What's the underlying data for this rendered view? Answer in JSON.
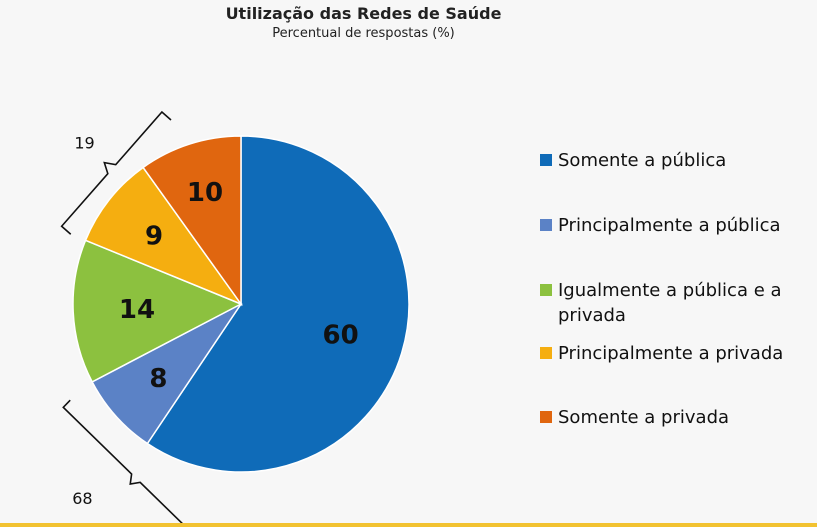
{
  "chart_data": {
    "type": "pie",
    "title": "Utilização  das Redes de  Saúde",
    "subtitle": "Percentual de respostas (%)",
    "categories": [
      "Somente a pública",
      "Principalmente a pública",
      "Igualmente a pública e a privada",
      "Principalmente a privada",
      "Somente a privada"
    ],
    "values": [
      60,
      8,
      14,
      9,
      10
    ],
    "colors": [
      "#0f6bb8",
      "#5b82c6",
      "#8cc13f",
      "#f5ae10",
      "#e0660f"
    ],
    "legend_position": "right",
    "annotations": [
      {
        "label": "19",
        "groups": [
          "Principalmente a privada",
          "Somente a privada"
        ]
      },
      {
        "label": "68",
        "groups": [
          "Somente a pública",
          "Principalmente a pública"
        ]
      }
    ]
  }
}
